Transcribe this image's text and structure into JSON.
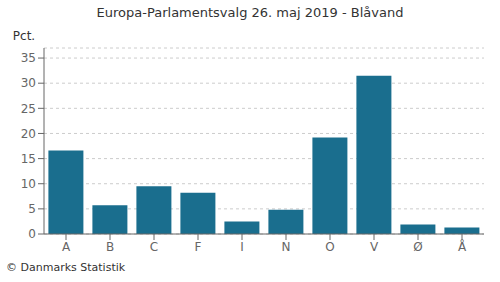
{
  "chart_data": {
    "type": "bar",
    "title": "Europa-Parlamentsvalg 26. maj 2019 - Blåvand",
    "categories": [
      "A",
      "B",
      "C",
      "F",
      "I",
      "N",
      "O",
      "V",
      "Ø",
      "Å"
    ],
    "values": [
      16.6,
      5.7,
      9.5,
      8.2,
      2.5,
      4.8,
      19.2,
      31.5,
      1.9,
      1.3
    ],
    "color": "#1a6e8e",
    "ylabel": "Pct.",
    "ylim": [
      0,
      37
    ],
    "yticks": [
      0,
      5,
      10,
      15,
      20,
      25,
      30,
      35
    ],
    "grid": true,
    "footnote": "© Danmarks Statistik"
  }
}
